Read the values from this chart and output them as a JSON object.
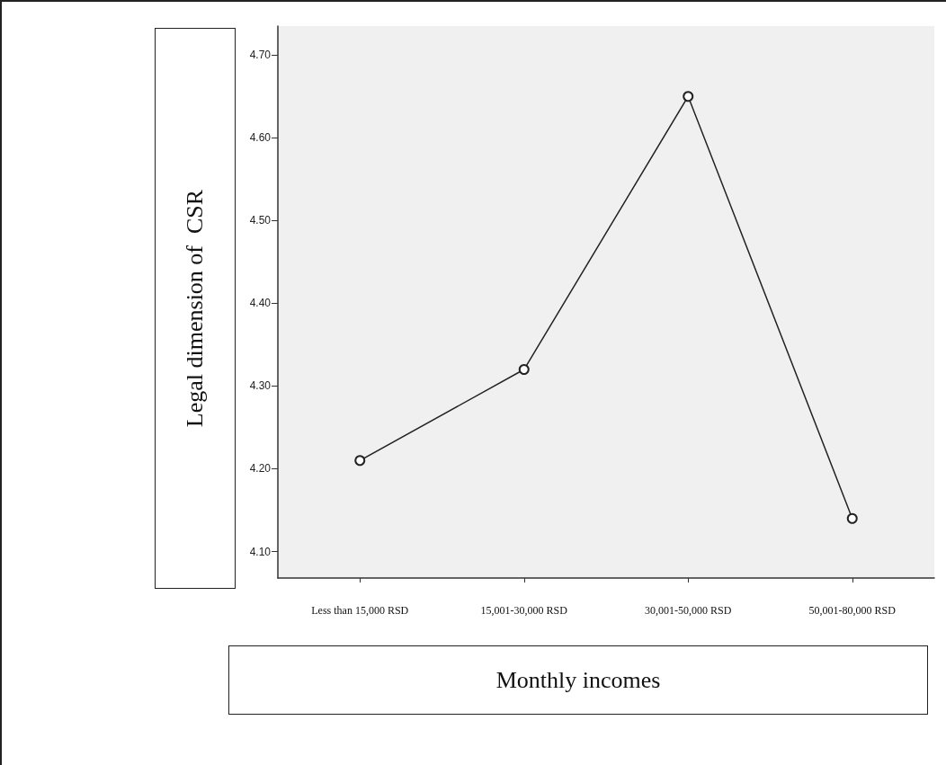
{
  "chart_data": {
    "type": "line",
    "xlabel": "Monthly incomes",
    "ylabel": "Legal dimension of  CSR",
    "categories": [
      "Less than 15,000 RSD",
      "15,001-30,000 RSD",
      "30,001-50,000 RSD",
      "50,001-80,000 RSD"
    ],
    "series": [
      {
        "color": "#222222",
        "values": [
          4.21,
          4.32,
          4.65,
          4.14
        ]
      }
    ],
    "ylim": [
      4.068,
      4.735
    ],
    "yticks": [
      {
        "value": 4.1,
        "label": "4.10"
      },
      {
        "value": 4.2,
        "label": "4.20"
      },
      {
        "value": 4.3,
        "label": "4.30"
      },
      {
        "value": 4.4,
        "label": "4.40"
      },
      {
        "value": 4.5,
        "label": "4.50"
      },
      {
        "value": 4.6,
        "label": "4.60"
      },
      {
        "value": 4.7,
        "label": "4.70"
      }
    ],
    "grid": false,
    "marker": "circle",
    "line_style": "solid"
  }
}
